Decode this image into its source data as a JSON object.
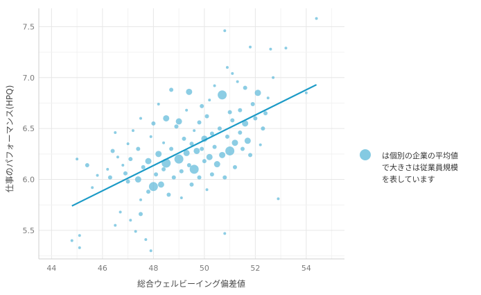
{
  "chart_data": {
    "type": "scatter",
    "xlabel": "総合ウェルビーイング偏差値",
    "ylabel": "仕事のパフォーマンス(HPQ)",
    "xlim": [
      43.5,
      55.5
    ],
    "ylim": [
      5.22,
      7.68
    ],
    "x_ticks": [
      "44",
      "46",
      "48",
      "50",
      "52",
      "54"
    ],
    "y_ticks": [
      "5.5",
      "6.0",
      "6.5",
      "7.0",
      "7.5"
    ],
    "grid": true,
    "legend": {
      "position": "right",
      "lines": [
        "は個別の企業の平均値",
        "で大きさは従業員規模",
        "を表しています"
      ]
    },
    "colors": {
      "point": "#5bb8d8",
      "line": "#1b9ac6"
    },
    "trend_line": {
      "x": [
        44.8,
        54.4
      ],
      "y": [
        5.74,
        6.93
      ]
    },
    "points": [
      {
        "x": 44.8,
        "y": 5.4,
        "s": 1
      },
      {
        "x": 45.1,
        "y": 5.33,
        "s": 1
      },
      {
        "x": 45.1,
        "y": 5.45,
        "s": 1
      },
      {
        "x": 45.0,
        "y": 6.2,
        "s": 1
      },
      {
        "x": 45.4,
        "y": 6.14,
        "s": 2
      },
      {
        "x": 45.6,
        "y": 5.92,
        "s": 1
      },
      {
        "x": 45.8,
        "y": 6.04,
        "s": 1
      },
      {
        "x": 46.2,
        "y": 6.1,
        "s": 1
      },
      {
        "x": 46.3,
        "y": 6.02,
        "s": 2
      },
      {
        "x": 46.4,
        "y": 6.28,
        "s": 2
      },
      {
        "x": 46.5,
        "y": 6.46,
        "s": 1
      },
      {
        "x": 46.6,
        "y": 6.22,
        "s": 1
      },
      {
        "x": 46.5,
        "y": 5.55,
        "s": 1
      },
      {
        "x": 46.7,
        "y": 5.68,
        "s": 1
      },
      {
        "x": 46.8,
        "y": 6.14,
        "s": 1
      },
      {
        "x": 46.9,
        "y": 6.06,
        "s": 2
      },
      {
        "x": 47.0,
        "y": 5.98,
        "s": 2
      },
      {
        "x": 47.0,
        "y": 6.35,
        "s": 1
      },
      {
        "x": 47.1,
        "y": 6.2,
        "s": 2
      },
      {
        "x": 47.1,
        "y": 5.6,
        "s": 1
      },
      {
        "x": 47.2,
        "y": 6.48,
        "s": 1
      },
      {
        "x": 47.3,
        "y": 5.49,
        "s": 1
      },
      {
        "x": 47.4,
        "y": 6.0,
        "s": 3
      },
      {
        "x": 47.4,
        "y": 6.3,
        "s": 2
      },
      {
        "x": 47.5,
        "y": 6.6,
        "s": 1
      },
      {
        "x": 47.5,
        "y": 5.8,
        "s": 1
      },
      {
        "x": 47.5,
        "y": 5.66,
        "s": 2
      },
      {
        "x": 47.6,
        "y": 6.12,
        "s": 2
      },
      {
        "x": 47.7,
        "y": 5.41,
        "s": 1
      },
      {
        "x": 47.8,
        "y": 6.18,
        "s": 3
      },
      {
        "x": 47.8,
        "y": 5.88,
        "s": 2
      },
      {
        "x": 47.9,
        "y": 6.42,
        "s": 1
      },
      {
        "x": 47.9,
        "y": 5.3,
        "s": 1
      },
      {
        "x": 48.0,
        "y": 6.55,
        "s": 2
      },
      {
        "x": 48.0,
        "y": 5.93,
        "s": 4
      },
      {
        "x": 48.1,
        "y": 6.05,
        "s": 2
      },
      {
        "x": 48.2,
        "y": 6.25,
        "s": 3
      },
      {
        "x": 48.2,
        "y": 6.74,
        "s": 1
      },
      {
        "x": 48.3,
        "y": 5.95,
        "s": 3
      },
      {
        "x": 48.4,
        "y": 6.1,
        "s": 2
      },
      {
        "x": 48.4,
        "y": 6.36,
        "s": 1
      },
      {
        "x": 48.5,
        "y": 6.16,
        "s": 4
      },
      {
        "x": 48.5,
        "y": 6.6,
        "s": 3
      },
      {
        "x": 48.6,
        "y": 5.85,
        "s": 2
      },
      {
        "x": 48.7,
        "y": 6.3,
        "s": 2
      },
      {
        "x": 48.7,
        "y": 6.88,
        "s": 2
      },
      {
        "x": 48.8,
        "y": 6.02,
        "s": 2
      },
      {
        "x": 48.9,
        "y": 6.52,
        "s": 2
      },
      {
        "x": 49.0,
        "y": 6.57,
        "s": 3
      },
      {
        "x": 49.0,
        "y": 6.2,
        "s": 4
      },
      {
        "x": 49.1,
        "y": 6.08,
        "s": 2
      },
      {
        "x": 49.1,
        "y": 5.82,
        "s": 1
      },
      {
        "x": 49.2,
        "y": 6.4,
        "s": 2
      },
      {
        "x": 49.3,
        "y": 6.68,
        "s": 1
      },
      {
        "x": 49.3,
        "y": 6.26,
        "s": 3
      },
      {
        "x": 49.4,
        "y": 6.86,
        "s": 3
      },
      {
        "x": 49.4,
        "y": 6.14,
        "s": 2
      },
      {
        "x": 49.5,
        "y": 6.35,
        "s": 2
      },
      {
        "x": 49.5,
        "y": 5.95,
        "s": 2
      },
      {
        "x": 49.6,
        "y": 6.48,
        "s": 1
      },
      {
        "x": 49.6,
        "y": 6.1,
        "s": 4
      },
      {
        "x": 49.7,
        "y": 6.28,
        "s": 3
      },
      {
        "x": 49.8,
        "y": 6.56,
        "s": 2
      },
      {
        "x": 49.8,
        "y": 6.02,
        "s": 2
      },
      {
        "x": 49.9,
        "y": 6.72,
        "s": 2
      },
      {
        "x": 49.9,
        "y": 6.3,
        "s": 2
      },
      {
        "x": 50.0,
        "y": 6.4,
        "s": 3
      },
      {
        "x": 50.0,
        "y": 6.18,
        "s": 2
      },
      {
        "x": 50.1,
        "y": 5.9,
        "s": 1
      },
      {
        "x": 50.1,
        "y": 6.62,
        "s": 2
      },
      {
        "x": 50.2,
        "y": 6.22,
        "s": 3
      },
      {
        "x": 50.2,
        "y": 6.78,
        "s": 1
      },
      {
        "x": 50.3,
        "y": 6.45,
        "s": 2
      },
      {
        "x": 50.3,
        "y": 6.05,
        "s": 2
      },
      {
        "x": 50.4,
        "y": 6.32,
        "s": 2
      },
      {
        "x": 50.4,
        "y": 6.92,
        "s": 1
      },
      {
        "x": 50.5,
        "y": 6.15,
        "s": 3
      },
      {
        "x": 50.6,
        "y": 6.5,
        "s": 2
      },
      {
        "x": 50.7,
        "y": 6.83,
        "s": 4
      },
      {
        "x": 50.7,
        "y": 6.24,
        "s": 3
      },
      {
        "x": 50.8,
        "y": 7.46,
        "s": 1
      },
      {
        "x": 50.8,
        "y": 6.02,
        "s": 2
      },
      {
        "x": 50.8,
        "y": 5.47,
        "s": 1
      },
      {
        "x": 50.9,
        "y": 7.1,
        "s": 1
      },
      {
        "x": 50.9,
        "y": 6.42,
        "s": 2
      },
      {
        "x": 51.0,
        "y": 6.28,
        "s": 4
      },
      {
        "x": 51.0,
        "y": 6.66,
        "s": 2
      },
      {
        "x": 51.1,
        "y": 7.04,
        "s": 1
      },
      {
        "x": 51.1,
        "y": 6.58,
        "s": 2
      },
      {
        "x": 51.2,
        "y": 6.36,
        "s": 3
      },
      {
        "x": 51.2,
        "y": 6.12,
        "s": 2
      },
      {
        "x": 51.3,
        "y": 6.96,
        "s": 1
      },
      {
        "x": 51.4,
        "y": 6.68,
        "s": 2
      },
      {
        "x": 51.4,
        "y": 6.46,
        "s": 2
      },
      {
        "x": 51.5,
        "y": 6.3,
        "s": 2
      },
      {
        "x": 51.6,
        "y": 6.55,
        "s": 3
      },
      {
        "x": 51.6,
        "y": 6.9,
        "s": 2
      },
      {
        "x": 51.7,
        "y": 6.38,
        "s": 3
      },
      {
        "x": 51.8,
        "y": 7.3,
        "s": 1
      },
      {
        "x": 51.8,
        "y": 6.24,
        "s": 2
      },
      {
        "x": 51.9,
        "y": 6.74,
        "s": 2
      },
      {
        "x": 52.0,
        "y": 6.6,
        "s": 2
      },
      {
        "x": 52.1,
        "y": 6.85,
        "s": 3
      },
      {
        "x": 52.2,
        "y": 6.34,
        "s": 1
      },
      {
        "x": 52.3,
        "y": 6.5,
        "s": 2
      },
      {
        "x": 52.4,
        "y": 6.65,
        "s": 2
      },
      {
        "x": 52.5,
        "y": 6.8,
        "s": 1
      },
      {
        "x": 52.6,
        "y": 7.28,
        "s": 1
      },
      {
        "x": 52.7,
        "y": 7.0,
        "s": 1
      },
      {
        "x": 52.9,
        "y": 5.81,
        "s": 1
      },
      {
        "x": 53.2,
        "y": 7.29,
        "s": 1
      },
      {
        "x": 54.0,
        "y": 6.85,
        "s": 1
      },
      {
        "x": 54.4,
        "y": 7.58,
        "s": 1
      }
    ]
  }
}
